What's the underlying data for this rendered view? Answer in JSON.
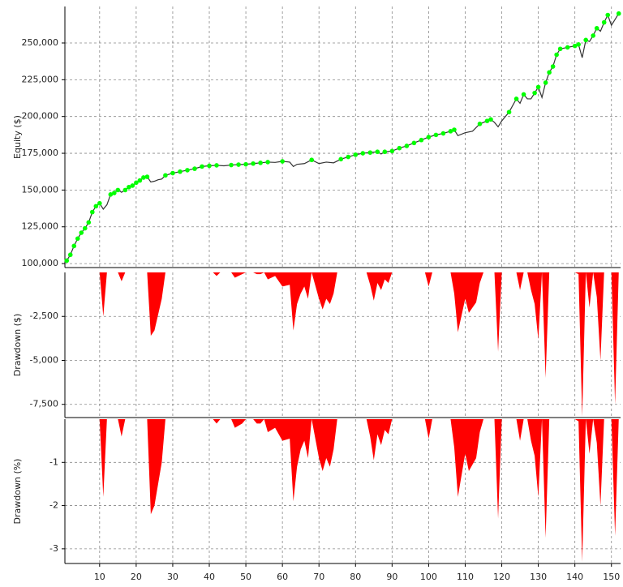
{
  "chart_data": [
    {
      "type": "line",
      "ylabel": "Equity ($)",
      "color": "#333333",
      "marker_color": "#00ff00",
      "ylim": [
        97300,
        274800
      ],
      "yticks": [
        {
          "value": 100000,
          "label": "100,000"
        },
        {
          "value": 125000,
          "label": "125,000"
        },
        {
          "value": 150000,
          "label": "150,000"
        },
        {
          "value": 175000,
          "label": "175,000"
        },
        {
          "value": 200000,
          "label": "200,000"
        },
        {
          "value": 225000,
          "label": "225,000"
        },
        {
          "value": 250000,
          "label": "250,000"
        }
      ],
      "x": [
        1,
        2,
        3,
        4,
        5,
        6,
        7,
        8,
        9,
        10,
        11,
        12,
        13,
        14,
        15,
        16,
        17,
        18,
        19,
        20,
        21,
        22,
        23,
        24,
        25,
        26,
        27,
        28,
        30,
        32,
        34,
        36,
        38,
        40,
        42,
        44,
        46,
        48,
        50,
        52,
        54,
        56,
        58,
        60,
        62,
        63,
        64,
        66,
        68,
        70,
        72,
        74,
        76,
        78,
        80,
        82,
        84,
        86,
        87,
        88,
        90,
        92,
        94,
        96,
        98,
        100,
        102,
        104,
        106,
        107,
        108,
        110,
        112,
        114,
        116,
        117,
        118,
        119,
        120,
        122,
        124,
        125,
        126,
        127,
        128,
        129,
        130,
        131,
        132,
        133,
        134,
        135,
        136,
        138,
        140,
        141,
        142,
        143,
        144,
        145,
        146,
        147,
        148,
        149,
        150,
        151,
        152
      ],
      "values": [
        102000,
        106000,
        112000,
        117000,
        121000,
        124000,
        128000,
        135000,
        139000,
        141000,
        137000,
        140000,
        147000,
        148000,
        150000,
        148500,
        150000,
        152000,
        153000,
        155000,
        156500,
        158500,
        159000,
        155500,
        156000,
        157000,
        157500,
        160000,
        161500,
        162500,
        163500,
        164500,
        166000,
        166500,
        166800,
        166500,
        167000,
        167300,
        167500,
        168000,
        168500,
        169000,
        168800,
        169500,
        169000,
        166000,
        167500,
        168000,
        170500,
        168000,
        169000,
        168500,
        171000,
        172500,
        174000,
        175000,
        175500,
        176000,
        174500,
        176000,
        176500,
        178500,
        180000,
        182000,
        184000,
        186000,
        187500,
        188500,
        190000,
        191000,
        187000,
        189000,
        190000,
        195000,
        197000,
        198000,
        196000,
        193000,
        197000,
        203000,
        212000,
        209000,
        215000,
        212000,
        212000,
        216000,
        220000,
        213000,
        223000,
        230000,
        234000,
        242000,
        246000,
        247000,
        248000,
        249000,
        240000,
        252000,
        251000,
        255000,
        260000,
        258000,
        264000,
        269000,
        262000,
        266000,
        270000
      ]
    },
    {
      "type": "area",
      "ylabel": "Drawdown ($)",
      "color": "#ff0000",
      "ylim": [
        -8250,
        0
      ],
      "yticks": [
        {
          "value": -2500,
          "label": "-2,500"
        },
        {
          "value": -5000,
          "label": "-5,000"
        },
        {
          "value": -7500,
          "label": "-7,500"
        }
      ],
      "x": [
        1,
        10,
        11,
        12,
        15,
        16,
        17,
        23,
        24,
        25,
        27,
        28,
        41,
        42,
        43,
        46,
        47,
        49,
        50,
        52,
        53,
        54,
        55,
        56,
        58,
        60,
        62,
        63,
        64,
        65,
        66,
        67,
        68,
        70,
        71,
        72,
        73,
        74,
        75,
        83,
        84,
        85,
        86,
        87,
        88,
        89,
        90,
        99,
        100,
        101,
        106,
        107,
        108,
        110,
        111,
        113,
        114,
        115,
        118,
        119,
        120,
        124,
        125,
        126,
        127,
        128,
        129,
        130,
        131,
        132,
        133,
        140,
        141,
        142,
        143,
        144,
        145,
        146,
        147,
        148,
        150,
        151,
        152
      ],
      "values": [
        0,
        0,
        -2500,
        0,
        0,
        -500,
        0,
        0,
        -3600,
        -3300,
        -1500,
        0,
        0,
        -200,
        0,
        0,
        -300,
        -100,
        0,
        0,
        -100,
        -100,
        0,
        -400,
        -200,
        -800,
        -700,
        -3300,
        -1800,
        -1200,
        -800,
        -1500,
        0,
        -1500,
        -2100,
        -1500,
        -1800,
        -1200,
        0,
        0,
        -700,
        -1600,
        -600,
        -1000,
        -400,
        -600,
        0,
        0,
        -800,
        0,
        0,
        -1200,
        -3400,
        -1500,
        -2300,
        -1700,
        -600,
        0,
        0,
        -4500,
        0,
        0,
        -1000,
        0,
        0,
        -1000,
        -1800,
        -3800,
        0,
        -6000,
        0,
        0,
        -100,
        -8200,
        0,
        -2000,
        0,
        -1400,
        -5000,
        0,
        0,
        -7500,
        0
      ]
    },
    {
      "type": "area",
      "ylabel": "Drawdown (%)",
      "color": "#ff0000",
      "ylim": [
        -3.34,
        0
      ],
      "yticks": [
        -1,
        -2,
        -3
      ],
      "xlim": [
        0.5,
        152.5
      ],
      "xticks": [
        10,
        20,
        30,
        40,
        50,
        60,
        70,
        80,
        90,
        100,
        110,
        120,
        130,
        140,
        150
      ],
      "x": [
        1,
        10,
        11,
        12,
        15,
        16,
        17,
        23,
        24,
        25,
        27,
        28,
        41,
        42,
        43,
        46,
        47,
        49,
        50,
        52,
        53,
        54,
        55,
        56,
        58,
        60,
        62,
        63,
        64,
        65,
        66,
        67,
        68,
        70,
        71,
        72,
        73,
        74,
        75,
        83,
        84,
        85,
        86,
        87,
        88,
        89,
        90,
        99,
        100,
        101,
        106,
        107,
        108,
        110,
        111,
        113,
        114,
        115,
        118,
        119,
        120,
        124,
        125,
        126,
        127,
        128,
        129,
        130,
        131,
        132,
        133,
        140,
        141,
        142,
        143,
        144,
        145,
        146,
        147,
        148,
        150,
        151,
        152
      ],
      "values": [
        0,
        0,
        -1.8,
        0,
        0,
        -0.4,
        0,
        0,
        -2.2,
        -2,
        -1,
        0,
        0,
        -0.1,
        0,
        0,
        -0.2,
        -0.1,
        0,
        0,
        -0.1,
        -0.1,
        0,
        -0.3,
        -0.2,
        -0.5,
        -0.45,
        -1.9,
        -1.1,
        -0.7,
        -0.5,
        -0.9,
        0,
        -0.9,
        -1.2,
        -0.9,
        -1.1,
        -0.7,
        0,
        0,
        -0.4,
        -0.95,
        -0.35,
        -0.6,
        -0.25,
        -0.35,
        0,
        0,
        -0.45,
        0,
        0,
        -0.65,
        -1.8,
        -0.8,
        -1.2,
        -0.9,
        -0.3,
        0,
        0,
        -2.3,
        0,
        0,
        -0.5,
        0,
        0,
        -0.5,
        -0.85,
        -1.8,
        0,
        -2.75,
        0,
        0,
        -0.05,
        -3.3,
        0,
        -0.8,
        0,
        -0.55,
        -2,
        0,
        0,
        -2.7,
        0
      ]
    }
  ]
}
